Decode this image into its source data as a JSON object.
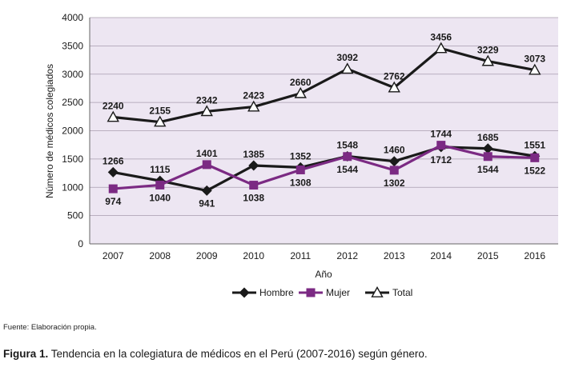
{
  "chart_data": {
    "type": "line",
    "categories": [
      "2007",
      "2008",
      "2009",
      "2010",
      "2011",
      "2012",
      "2013",
      "2014",
      "2015",
      "2016"
    ],
    "series": [
      {
        "name": "Hombre",
        "values": [
          1266,
          1115,
          941,
          1385,
          1352,
          1548,
          1460,
          1712,
          1685,
          1551
        ],
        "color": "#1a1a1a",
        "marker": "diamond"
      },
      {
        "name": "Mujer",
        "values": [
          974,
          1040,
          1401,
          1038,
          1308,
          1544,
          1302,
          1744,
          1544,
          1522
        ],
        "color": "#7b2a83",
        "marker": "square"
      },
      {
        "name": "Total",
        "values": [
          2240,
          2155,
          2342,
          2423,
          2660,
          3092,
          2762,
          3456,
          3229,
          3073
        ],
        "color": "#1a1a1a",
        "marker": "triangle"
      }
    ],
    "xlabel": "Año",
    "ylabel": "Número de médicos colegiados",
    "ylim": [
      0,
      4000
    ],
    "yticks": [
      0,
      500,
      1000,
      1500,
      2000,
      2500,
      3000,
      3500,
      4000
    ],
    "grid": true,
    "legend": "bottom",
    "plot_background": "#ede6f2"
  },
  "source_text": "Fuente: Elaboración propia.",
  "caption": {
    "label": "Figura 1.",
    "text": " Tendencia en la colegiatura de médicos en el Perú (2007-2016) según género."
  }
}
